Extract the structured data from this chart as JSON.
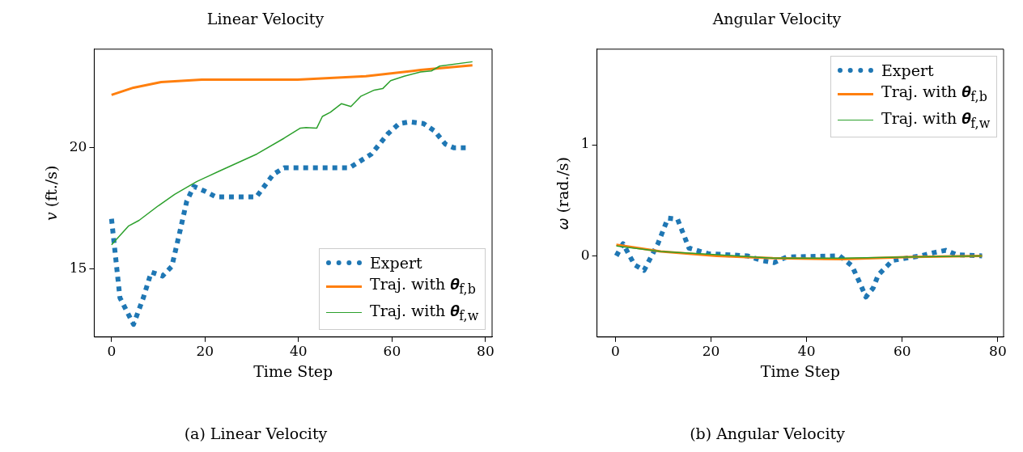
{
  "chart_data": [
    {
      "type": "line",
      "title": "Linear Velocity",
      "xlabel": "Time Step",
      "ylabel": "𝑣 (ft./s)",
      "xlim": [
        -3.7,
        81.4
      ],
      "ylim": [
        12.18,
        24.07
      ],
      "xticks": [
        0,
        20,
        40,
        60,
        80
      ],
      "yticks": [
        15,
        20
      ],
      "grid": false,
      "legend": "bottom right",
      "annotations": [
        "(a) Linear Velocity"
      ],
      "series": [
        {
          "name": "Expert",
          "color": "#1f77b4",
          "line_style": "dotted",
          "x": [
            0,
            1.8,
            4.7,
            6.8,
            8.5,
            10.9,
            12.9,
            14.7,
            16.1,
            17.6,
            20,
            22.3,
            31,
            34.6,
            36.9,
            50.9,
            55.6,
            59.1,
            61.5,
            63.8,
            66.7,
            69.1,
            71.4,
            73.2,
            76.4
          ],
          "values": [
            17.06,
            13.8,
            12.7,
            13.8,
            14.86,
            14.7,
            15.1,
            16.6,
            17.8,
            18.4,
            18.2,
            17.97,
            17.97,
            18.9,
            19.17,
            19.17,
            19.74,
            20.57,
            20.99,
            21.07,
            21.0,
            20.69,
            20.15,
            20.0,
            20.0
          ]
        },
        {
          "name": "Traj. with 𝜽$_{f,b}$",
          "color": "#ff7f0e",
          "line_style": "solid",
          "x": [
            0,
            4.7,
            10.6,
            19.3,
            39.8,
            54.4,
            66.1,
            77.2
          ],
          "values": [
            22.18,
            22.48,
            22.71,
            22.81,
            22.81,
            22.95,
            23.21,
            23.4
          ]
        },
        {
          "name": "Traj. with 𝜽$_{f,w}$",
          "color": "#2ca02c",
          "line_style": "solid",
          "x": [
            0,
            3.6,
            5.9,
            10,
            13.5,
            18.2,
            22.9,
            31.1,
            36.9,
            40.4,
            41.6,
            43.9,
            45.1,
            46.8,
            49.2,
            51.2,
            53.3,
            56.2,
            58,
            59.7,
            62.6,
            66.1,
            68.4,
            70.2,
            77.2
          ],
          "values": [
            15.99,
            16.76,
            17.0,
            17.6,
            18.07,
            18.6,
            19.02,
            19.74,
            20.39,
            20.81,
            20.83,
            20.81,
            21.29,
            21.46,
            21.82,
            21.7,
            22.12,
            22.38,
            22.44,
            22.77,
            22.95,
            23.13,
            23.17,
            23.37,
            23.55
          ]
        }
      ]
    },
    {
      "type": "line",
      "title": "Angular Velocity",
      "xlabel": "Time Step",
      "ylabel": "𝜔 (rad./s)",
      "xlim": [
        -3.85,
        81.2
      ],
      "ylim": [
        -0.73,
        1.86
      ],
      "xticks": [
        0,
        20,
        40,
        60,
        80
      ],
      "yticks": [
        0,
        1
      ],
      "grid": false,
      "legend": "top right",
      "annotations": [
        "(b) Angular Velocity"
      ],
      "series": [
        {
          "name": "Expert",
          "color": "#1f77b4",
          "line_style": "dotted",
          "x": [
            0.2,
            1.6,
            4,
            6,
            8.9,
            11,
            13,
            14.2,
            15.4,
            19.4,
            27.6,
            30.5,
            33.2,
            35.8,
            46.9,
            49.5,
            51.3,
            52.4,
            53.9,
            55,
            58,
            63.8,
            66.7,
            69.1,
            71.4,
            76.7
          ],
          "values": [
            0.0,
            0.11,
            -0.08,
            -0.13,
            0.11,
            0.34,
            0.33,
            0.2,
            0.07,
            0.02,
            0.0,
            -0.04,
            -0.06,
            -0.01,
            0.0,
            -0.09,
            -0.26,
            -0.37,
            -0.29,
            -0.17,
            -0.04,
            0.0,
            0.03,
            0.05,
            0.01,
            0.0
          ]
        },
        {
          "name": "Traj. with 𝜽$_{f,b}$",
          "color": "#ff7f0e",
          "line_style": "solid",
          "x": [
            0.2,
            9.5,
            21.2,
            32.9,
            47.5,
            62,
            76.7
          ],
          "values": [
            0.1,
            0.04,
            0.0,
            -0.02,
            -0.03,
            -0.01,
            0.0
          ]
        },
        {
          "name": "Traj. with 𝜽$_{f,w}$",
          "color": "#2ca02c",
          "line_style": "solid",
          "x": [
            0.2,
            9.5,
            21.2,
            32.9,
            47.5,
            62,
            76.7
          ],
          "values": [
            0.09,
            0.04,
            0.01,
            -0.02,
            -0.02,
            -0.01,
            0.0
          ]
        }
      ]
    }
  ]
}
